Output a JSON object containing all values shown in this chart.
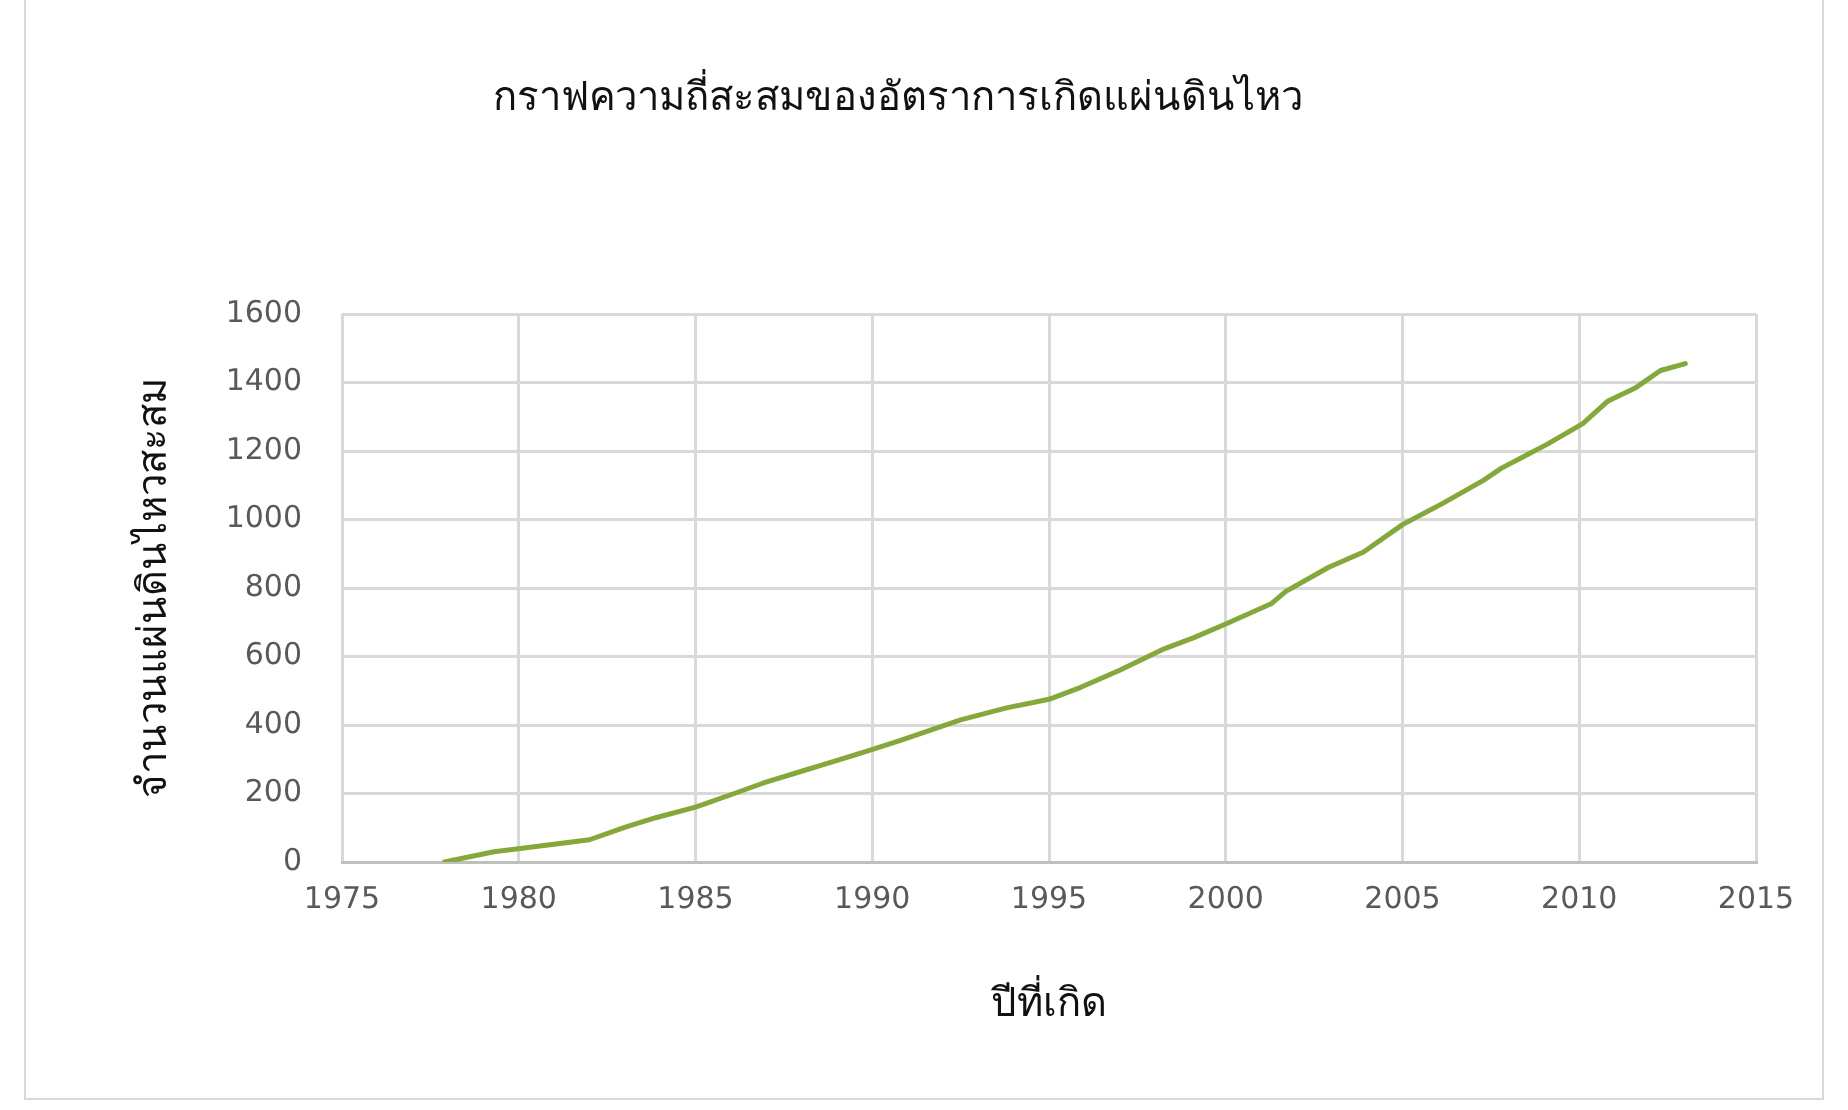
{
  "chart_data": {
    "type": "line",
    "title": "กราฟความถี่สะสมของอัตราการเกิดแผ่นดินไหว",
    "xlabel": "ปีที่เกิด",
    "ylabel": "จำนวนแผ่นดินไหวสะสม",
    "x": [
      1977.9,
      1979.3,
      1980.1,
      1982.0,
      1983.1,
      1983.9,
      1985.0,
      1986.1,
      1986.9,
      1988.0,
      1988.8,
      1989.9,
      1990.8,
      1992.5,
      1993.8,
      1995.0,
      1995.9,
      1997.0,
      1998.2,
      1999.1,
      2000.0,
      2001.3,
      2001.7,
      2002.9,
      2003.9,
      2005.0,
      2006.1,
      2007.3,
      2007.8,
      2009.1,
      2010.1,
      2010.8,
      2011.6,
      2012.3,
      2013.0
    ],
    "values": [
      0,
      30,
      40,
      65,
      105,
      130,
      160,
      200,
      230,
      265,
      290,
      325,
      355,
      415,
      450,
      475,
      510,
      560,
      620,
      655,
      695,
      755,
      790,
      860,
      905,
      985,
      1045,
      1115,
      1150,
      1220,
      1280,
      1345,
      1385,
      1435,
      1455
    ],
    "color": "#84a83a",
    "xlim": [
      1975,
      2015
    ],
    "xticks": [
      1975,
      1980,
      1985,
      1990,
      1995,
      2000,
      2005,
      2010,
      2015
    ],
    "ylim": [
      0,
      1600
    ],
    "yticks": [
      0,
      200,
      400,
      600,
      800,
      1000,
      1200,
      1400,
      1600
    ],
    "grid": true,
    "marker": "none"
  }
}
